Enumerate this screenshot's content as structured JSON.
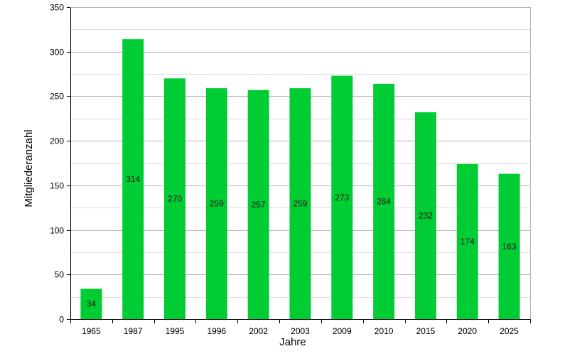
{
  "chart_data": {
    "type": "bar",
    "categories": [
      "1965",
      "1987",
      "1995",
      "1996",
      "2002",
      "2003",
      "2009",
      "2010",
      "2015",
      "2020",
      "2025"
    ],
    "values": [
      34,
      314,
      270,
      259,
      257,
      259,
      273,
      264,
      232,
      174,
      163
    ],
    "data_labels": [
      "34",
      "314",
      "270",
      "259",
      "257",
      "259",
      "273",
      "264",
      "232",
      "174",
      "163"
    ],
    "xlabel": "Jahre",
    "ylabel": "Mitgliederanzahl",
    "ylim": [
      0,
      350
    ],
    "y_ticks": [
      0,
      50,
      100,
      150,
      200,
      250,
      300,
      350
    ],
    "y_tick_labels": [
      "0",
      "50",
      "100",
      "150",
      "200",
      "250",
      "300",
      "350"
    ],
    "grid": true,
    "minor_grid": true,
    "bar_color": "#00cc33",
    "grid_color": "#b3b3b3",
    "legend": "none"
  }
}
